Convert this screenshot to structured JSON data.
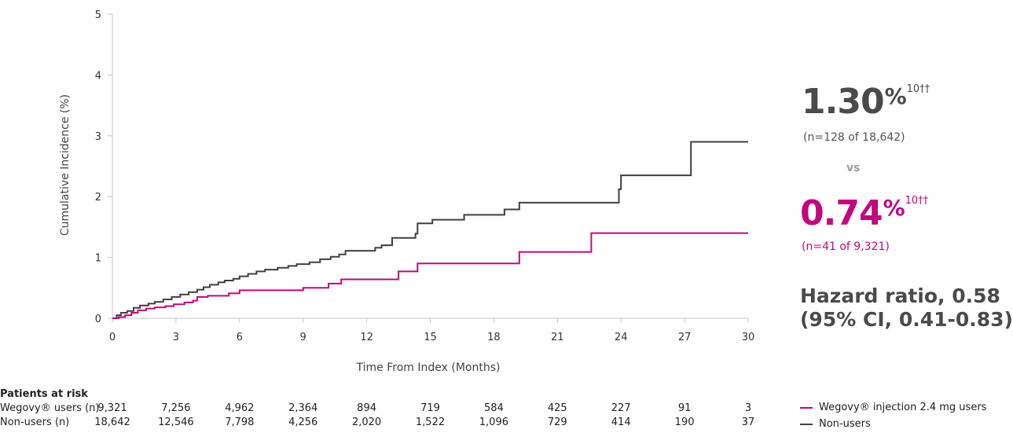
{
  "colors": {
    "wegovy": "#c2087e",
    "non_users": "#404040",
    "axis": "#c8c8c8"
  },
  "chart_data": {
    "type": "line",
    "xlabel": "Time From Index (Months)",
    "ylabel": "Cumulative Incidence (%)",
    "xlim": [
      0,
      30
    ],
    "ylim": [
      0,
      5
    ],
    "x_ticks": [
      "0",
      "3",
      "6",
      "9",
      "12",
      "15",
      "18",
      "21",
      "24",
      "27",
      "30"
    ],
    "y_ticks": [
      "0",
      "1",
      "2",
      "3",
      "4",
      "5"
    ],
    "series": [
      {
        "name": "Non-users",
        "step": true,
        "points": [
          [
            0,
            0
          ],
          [
            0.2,
            0.05
          ],
          [
            0.4,
            0.09
          ],
          [
            0.7,
            0.12
          ],
          [
            1,
            0.17
          ],
          [
            1.3,
            0.21
          ],
          [
            1.7,
            0.24
          ],
          [
            2,
            0.27
          ],
          [
            2.4,
            0.31
          ],
          [
            2.8,
            0.35
          ],
          [
            3.2,
            0.39
          ],
          [
            3.6,
            0.43
          ],
          [
            4,
            0.47
          ],
          [
            4.3,
            0.51
          ],
          [
            4.6,
            0.55
          ],
          [
            5,
            0.59
          ],
          [
            5.3,
            0.62
          ],
          [
            5.7,
            0.65
          ],
          [
            6,
            0.69
          ],
          [
            6.4,
            0.73
          ],
          [
            6.8,
            0.77
          ],
          [
            7.2,
            0.8
          ],
          [
            7.8,
            0.83
          ],
          [
            8.3,
            0.86
          ],
          [
            8.7,
            0.89
          ],
          [
            9.3,
            0.92
          ],
          [
            9.8,
            0.97
          ],
          [
            10.3,
            1.01
          ],
          [
            10.7,
            1.05
          ],
          [
            11,
            1.11
          ],
          [
            12.4,
            1.16
          ],
          [
            12.7,
            1.2
          ],
          [
            13.2,
            1.32
          ],
          [
            14.3,
            1.39
          ],
          [
            14.4,
            1.56
          ],
          [
            15.1,
            1.62
          ],
          [
            16.6,
            1.7
          ],
          [
            18.5,
            1.79
          ],
          [
            19.2,
            1.9
          ],
          [
            23.9,
            2.12
          ],
          [
            24,
            2.35
          ],
          [
            27.3,
            2.9
          ],
          [
            30,
            2.9
          ]
        ]
      },
      {
        "name": "Wegovy® injection 2.4 mg users",
        "step": true,
        "points": [
          [
            0,
            0
          ],
          [
            0.3,
            0.02
          ],
          [
            0.6,
            0.05
          ],
          [
            0.9,
            0.09
          ],
          [
            1.2,
            0.13
          ],
          [
            1.6,
            0.16
          ],
          [
            2,
            0.18
          ],
          [
            2.5,
            0.2
          ],
          [
            2.9,
            0.23
          ],
          [
            3.4,
            0.26
          ],
          [
            3.8,
            0.29
          ],
          [
            4,
            0.35
          ],
          [
            4.5,
            0.37
          ],
          [
            5.5,
            0.41
          ],
          [
            6,
            0.46
          ],
          [
            9,
            0.5
          ],
          [
            10.2,
            0.57
          ],
          [
            10.8,
            0.64
          ],
          [
            13.5,
            0.77
          ],
          [
            14.4,
            0.9
          ],
          [
            19.2,
            1.09
          ],
          [
            22.6,
            1.4
          ],
          [
            30,
            1.4
          ]
        ]
      }
    ],
    "legend": [
      {
        "label": "Wegovy® injection 2.4 mg users",
        "series": "Wegovy® injection 2.4 mg users"
      },
      {
        "label": "Non-users",
        "series": "Non-users"
      }
    ]
  },
  "stats": {
    "non_users_value": "1.30",
    "non_users_pct": "%",
    "non_users_ref": "10††",
    "non_users_n": "(n=128 of 18,642)",
    "vs_label": "vs",
    "wegovy_value": "0.74",
    "wegovy_pct": "%",
    "wegovy_ref": "10††",
    "wegovy_n": "(n=41 of 9,321)",
    "hazard_line1": "Hazard ratio, 0.58",
    "hazard_line2": "(95% CI, 0.41-0.83)"
  },
  "risk_table": {
    "title": "Patients at risk",
    "rows": [
      {
        "label": "Wegovy® users (n)",
        "values": [
          "9,321",
          "7,256",
          "4,962",
          "2,364",
          "894",
          "719",
          "584",
          "425",
          "227",
          "91",
          "3"
        ]
      },
      {
        "label": "Non-users (n)",
        "values": [
          "18,642",
          "12,546",
          "7,798",
          "4,256",
          "2,020",
          "1,522",
          "1,096",
          "729",
          "414",
          "190",
          "37"
        ]
      }
    ]
  }
}
